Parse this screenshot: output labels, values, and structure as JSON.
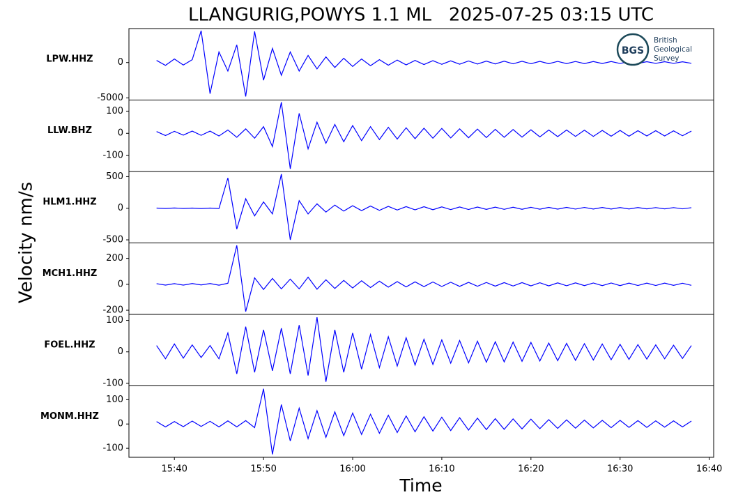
{
  "chart_data": {
    "type": "line",
    "title": "LLANGURIG,POWYS 1.1 ML   2025-07-25 03:15 UTC",
    "xlabel": "Time",
    "ylabel": "Velocity nm/s",
    "xlim": [
      934.9,
      1000.5
    ],
    "xticks": [
      {
        "value": 940,
        "label": "15:40"
      },
      {
        "value": 950,
        "label": "15:50"
      },
      {
        "value": 960,
        "label": "16:00"
      },
      {
        "value": 970,
        "label": "16:10"
      },
      {
        "value": 980,
        "label": "16:20"
      },
      {
        "value": 990,
        "label": "16:30"
      },
      {
        "value": 1000,
        "label": "16:40"
      }
    ],
    "x": [
      938,
      939,
      940,
      941,
      942,
      943,
      944,
      945,
      946,
      947,
      948,
      949,
      950,
      951,
      952,
      953,
      954,
      955,
      956,
      957,
      958,
      959,
      960,
      961,
      962,
      963,
      964,
      965,
      966,
      967,
      968,
      969,
      970,
      971,
      972,
      973,
      974,
      975,
      976,
      977,
      978,
      979,
      980,
      981,
      982,
      983,
      984,
      985,
      986,
      987,
      988,
      989,
      990,
      991,
      992,
      993,
      994,
      995,
      996,
      997,
      998
    ],
    "panels": [
      {
        "name": "LPW.HHZ",
        "color": "#0000ff",
        "ylim": [
          -5300,
          4800
        ],
        "yticks": [
          -5000,
          0
        ],
        "values": [
          300,
          -400,
          500,
          -350,
          400,
          4500,
          -4400,
          1500,
          -1200,
          2500,
          -4800,
          4400,
          -2500,
          2000,
          -1800,
          1500,
          -1200,
          1000,
          -900,
          800,
          -700,
          600,
          -550,
          500,
          -450,
          400,
          -380,
          350,
          -330,
          300,
          -280,
          260,
          -250,
          240,
          -230,
          220,
          -210,
          200,
          -200,
          190,
          -180,
          180,
          -170,
          170,
          -160,
          160,
          -150,
          150,
          -150,
          140,
          -140,
          140,
          -130,
          130,
          -130,
          120,
          -120,
          120,
          -120,
          110,
          -110
        ]
      },
      {
        "name": "LLW.BHZ",
        "color": "#0000ff",
        "ylim": [
          -172,
          150
        ],
        "yticks": [
          -100,
          0,
          100
        ],
        "values": [
          8,
          -10,
          9,
          -8,
          10,
          -9,
          10,
          -12,
          15,
          -18,
          20,
          -22,
          30,
          -60,
          140,
          -160,
          90,
          -70,
          50,
          -45,
          40,
          -38,
          35,
          -33,
          30,
          -28,
          27,
          -26,
          25,
          -24,
          23,
          -22,
          22,
          -21,
          20,
          -20,
          19,
          -19,
          18,
          -18,
          17,
          -17,
          16,
          -16,
          15,
          -15,
          15,
          -14,
          14,
          -14,
          13,
          -13,
          13,
          -13,
          12,
          -12,
          12,
          -12,
          11,
          -11,
          10
        ]
      },
      {
        "name": "HLM1.HHZ",
        "color": "#0000ff",
        "ylim": [
          -549,
          582
        ],
        "yticks": [
          -500,
          0,
          500
        ],
        "values": [
          3,
          -3,
          4,
          -3,
          3,
          -4,
          3,
          -4,
          480,
          -330,
          150,
          -120,
          100,
          -90,
          540,
          -500,
          120,
          -90,
          70,
          -60,
          50,
          -45,
          40,
          -38,
          35,
          -33,
          30,
          -28,
          26,
          -25,
          24,
          -23,
          22,
          -21,
          20,
          -20,
          19,
          -18,
          18,
          -17,
          16,
          -16,
          15,
          -15,
          14,
          -14,
          14,
          -13,
          13,
          -12,
          12,
          -12,
          11,
          -11,
          11,
          -10,
          10,
          -10,
          10,
          -9,
          9
        ]
      },
      {
        "name": "MCH1.HHZ",
        "color": "#0000ff",
        "ylim": [
          -232,
          319
        ],
        "yticks": [
          -200,
          0,
          200
        ],
        "values": [
          5,
          -6,
          5,
          -6,
          6,
          -5,
          6,
          -7,
          8,
          300,
          -210,
          50,
          -40,
          45,
          -35,
          40,
          -35,
          55,
          -38,
          35,
          -32,
          30,
          -28,
          27,
          -25,
          24,
          -22,
          21,
          -20,
          19,
          -18,
          18,
          -17,
          16,
          -16,
          15,
          -15,
          14,
          -14,
          13,
          -13,
          13,
          -12,
          12,
          -12,
          11,
          -11,
          11,
          -10,
          10,
          -10,
          10,
          -10,
          9,
          -9,
          9,
          -9,
          9,
          -8,
          8,
          -8
        ]
      },
      {
        "name": "FOEL.HHZ",
        "color": "#0000ff",
        "ylim": [
          -108,
          119
        ],
        "yticks": [
          -100,
          0,
          100
        ],
        "values": [
          20,
          -22,
          25,
          -20,
          22,
          -18,
          20,
          -22,
          60,
          -70,
          80,
          -65,
          70,
          -60,
          75,
          -70,
          85,
          -75,
          110,
          -95,
          70,
          -65,
          60,
          -55,
          55,
          -50,
          48,
          -45,
          45,
          -42,
          40,
          -40,
          38,
          -36,
          36,
          -35,
          34,
          -33,
          32,
          -32,
          31,
          -30,
          30,
          -29,
          28,
          -28,
          27,
          -27,
          26,
          -26,
          25,
          -25,
          24,
          -24,
          23,
          -23,
          22,
          -22,
          21,
          -21,
          20
        ]
      },
      {
        "name": "MONM.HHZ",
        "color": "#0000ff",
        "ylim": [
          -137,
          157
        ],
        "yticks": [
          -100,
          0,
          100
        ],
        "values": [
          10,
          -12,
          10,
          -11,
          12,
          -10,
          11,
          -12,
          13,
          -12,
          14,
          -15,
          145,
          -125,
          80,
          -70,
          65,
          -60,
          55,
          -55,
          50,
          -48,
          45,
          -43,
          40,
          -38,
          36,
          -35,
          33,
          -32,
          30,
          -29,
          28,
          -27,
          26,
          -25,
          24,
          -23,
          22,
          -22,
          21,
          -20,
          20,
          -19,
          18,
          -18,
          17,
          -17,
          16,
          -16,
          15,
          -15,
          15,
          -14,
          14,
          -14,
          13,
          -13,
          13,
          -12,
          12
        ]
      }
    ]
  },
  "logo": {
    "abbr": "BGS",
    "lines": [
      "British",
      "Geological",
      "Survey"
    ]
  }
}
